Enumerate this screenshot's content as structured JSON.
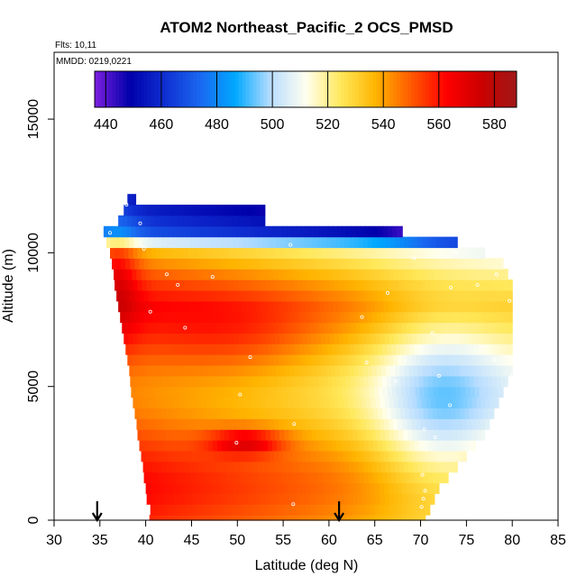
{
  "chart_data": {
    "type": "heatmap",
    "title": "ATOM2 Northeast_Pacific_2 OCS_PMSD",
    "subtitle_flights": "Flts: 10,11",
    "subtitle_dates": "MMDD: 0219,0221",
    "xlabel": "Latitude (deg N)",
    "ylabel": "Altitude (m)",
    "xlim": [
      30,
      85
    ],
    "ylim": [
      0,
      17500
    ],
    "x_ticks": [
      "30",
      "35",
      "40",
      "45",
      "50",
      "55",
      "60",
      "65",
      "70",
      "75",
      "80",
      "85"
    ],
    "y_ticks": [
      "0",
      "5000",
      "10000",
      "15000"
    ],
    "colorbar": {
      "min": 436,
      "max": 588,
      "ticks": [
        "440",
        "460",
        "480",
        "500",
        "520",
        "540",
        "560",
        "580"
      ],
      "colors": [
        "#7d1fe0",
        "#0000aa",
        "#0f2fd2",
        "#1a68f0",
        "#00a8ff",
        "#b8ddff",
        "#fffff0",
        "#ffe85a",
        "#ffb400",
        "#ff5a00",
        "#ff0000",
        "#cc0000",
        "#a01818"
      ]
    },
    "arrows_latitude": [
      34.7,
      61.1
    ],
    "profile_points": [
      {
        "lat": 37.9,
        "alt": 11800
      },
      {
        "lat": 39.4,
        "alt": 11100
      },
      {
        "lat": 36.1,
        "alt": 10750
      },
      {
        "lat": 39.8,
        "alt": 10150
      },
      {
        "lat": 42.3,
        "alt": 9200
      },
      {
        "lat": 43.5,
        "alt": 8800
      },
      {
        "lat": 47.3,
        "alt": 9100
      },
      {
        "lat": 55.8,
        "alt": 10300
      },
      {
        "lat": 69.3,
        "alt": 9800
      },
      {
        "lat": 73.8,
        "alt": 10000
      },
      {
        "lat": 78.3,
        "alt": 9200
      },
      {
        "lat": 76.2,
        "alt": 8800
      },
      {
        "lat": 73.3,
        "alt": 8700
      },
      {
        "lat": 66.4,
        "alt": 8500
      },
      {
        "lat": 79.7,
        "alt": 8200
      },
      {
        "lat": 40.5,
        "alt": 7800
      },
      {
        "lat": 63.6,
        "alt": 7600
      },
      {
        "lat": 44.3,
        "alt": 7200
      },
      {
        "lat": 71.3,
        "alt": 7000
      },
      {
        "lat": 51.4,
        "alt": 6100
      },
      {
        "lat": 64.1,
        "alt": 5900
      },
      {
        "lat": 78.0,
        "alt": 6000
      },
      {
        "lat": 80.0,
        "alt": 5400
      },
      {
        "lat": 72.0,
        "alt": 5400
      },
      {
        "lat": 67.3,
        "alt": 5200
      },
      {
        "lat": 50.3,
        "alt": 4700
      },
      {
        "lat": 73.2,
        "alt": 4300
      },
      {
        "lat": 56.2,
        "alt": 3600
      },
      {
        "lat": 70.4,
        "alt": 3400
      },
      {
        "lat": 71.6,
        "alt": 3100
      },
      {
        "lat": 49.9,
        "alt": 2900
      },
      {
        "lat": 70.2,
        "alt": 1700
      },
      {
        "lat": 70.5,
        "alt": 1100
      },
      {
        "lat": 70.3,
        "alt": 800
      },
      {
        "lat": 56.1,
        "alt": 600
      },
      {
        "lat": 70.1,
        "alt": 500
      },
      {
        "lat": 71.3,
        "alt": 400
      }
    ]
  }
}
